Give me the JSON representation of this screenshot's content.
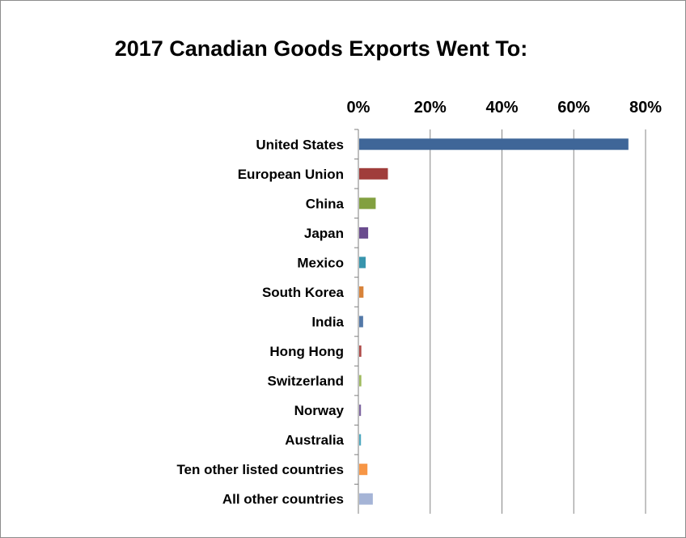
{
  "chart_data": {
    "type": "bar",
    "orientation": "horizontal",
    "title": "2017 Canadian Goods Exports Went To:",
    "xlabel": "",
    "ylabel": "",
    "xlim": [
      0,
      80
    ],
    "x_ticks": [
      "0%",
      "20%",
      "40%",
      "60%",
      "80%"
    ],
    "x_axis_position": "top",
    "grid": true,
    "legend": "none",
    "categories": [
      "United States",
      "European Union",
      "China",
      "Japan",
      "Mexico",
      "South Korea",
      "India",
      "Hong Hong",
      "Switzerland",
      "Norway",
      "Australia",
      "Ten other listed countries",
      "All other countries"
    ],
    "values": [
      75.0,
      8.0,
      4.6,
      2.5,
      1.8,
      1.2,
      1.1,
      0.6,
      0.6,
      0.5,
      0.5,
      2.3,
      3.8
    ],
    "colors": [
      "#3f6698",
      "#a03d3b",
      "#82a040",
      "#6a4c8e",
      "#3895ad",
      "#d8833a",
      "#5379a8",
      "#ae4a47",
      "#9fba5e",
      "#7e66a0",
      "#4ea8bf",
      "#f79646",
      "#a5b4d6"
    ]
  }
}
